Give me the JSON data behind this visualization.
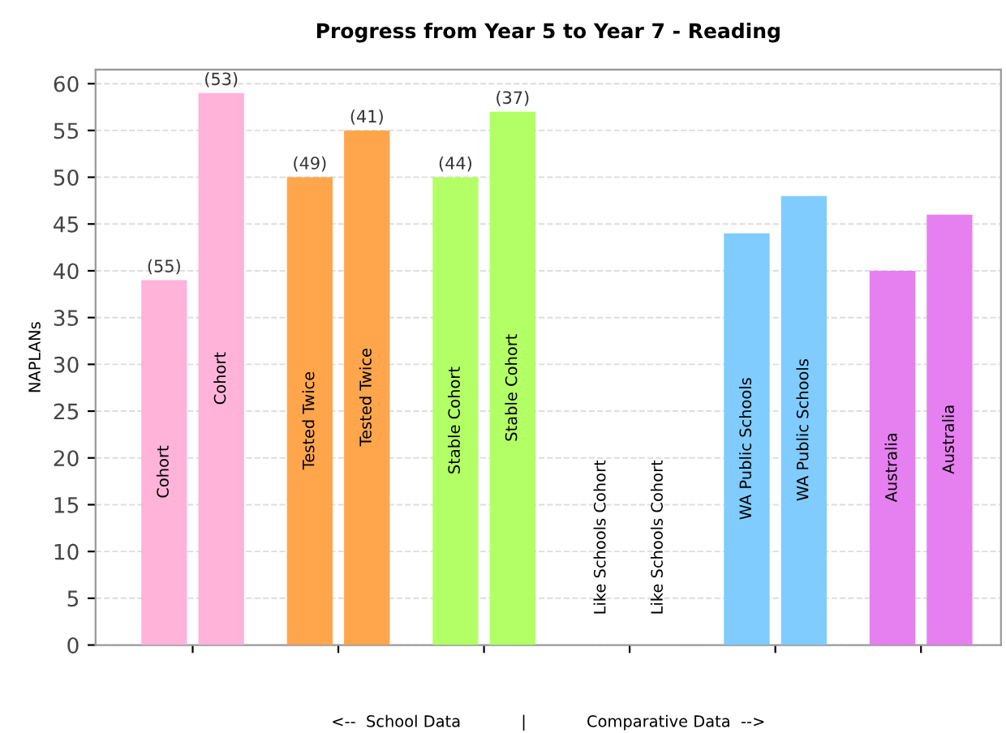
{
  "chart_data": {
    "type": "bar",
    "title": "Progress from Year 5 to Year 7 - Reading",
    "ylabel": "NAPLANs",
    "xlabel": "<--  School Data            |            Comparative Data  -->",
    "categories": [
      "Cohort",
      "Cohort",
      "Tested Twice",
      "Tested Twice",
      "Stable Cohort",
      "Stable Cohort",
      "Like Schools Cohort",
      "Like Schools Cohort",
      "WA Public Schools",
      "WA Public Schools",
      "Australia",
      "Australia"
    ],
    "values": [
      39,
      59,
      50,
      55,
      50,
      57,
      null,
      null,
      44,
      48,
      40,
      46
    ],
    "colors": [
      "#ffb3d9",
      "#ffb3d9",
      "#ffa64d",
      "#ffa64d",
      "#b3ff66",
      "#b3ff66",
      "#cccccc",
      "#cccccc",
      "#80ccff",
      "#80ccff",
      "#e680f0",
      "#e680f0"
    ],
    "annotations": [
      "(55)",
      "(53)",
      "(49)",
      "(41)",
      "(44)",
      "(37)"
    ],
    "ylim": [
      0,
      61.5
    ],
    "yticks": [
      0,
      5,
      10,
      15,
      20,
      25,
      30,
      35,
      40,
      45,
      50,
      55,
      60
    ],
    "grid": "y"
  }
}
